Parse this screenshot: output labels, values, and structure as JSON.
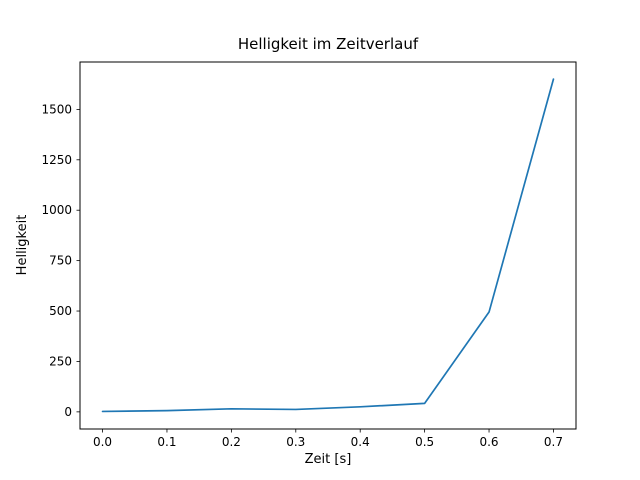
{
  "chart_data": {
    "type": "line",
    "title": "Helligkeit im Zeitverlauf",
    "xlabel": "Zeit [s]",
    "ylabel": "Helligkeit",
    "x": [
      0.0,
      0.1,
      0.2,
      0.3,
      0.4,
      0.5,
      0.6,
      0.7
    ],
    "y": [
      2,
      6,
      15,
      12,
      25,
      42,
      495,
      1650
    ],
    "xticks": [
      0.0,
      0.1,
      0.2,
      0.3,
      0.4,
      0.5,
      0.6,
      0.7
    ],
    "xtick_labels": [
      "0.0",
      "0.1",
      "0.2",
      "0.3",
      "0.4",
      "0.5",
      "0.6",
      "0.7"
    ],
    "yticks": [
      0,
      250,
      500,
      750,
      1000,
      1250,
      1500
    ],
    "ytick_labels": [
      "0",
      "250",
      "500",
      "750",
      "1000",
      "1250",
      "1500"
    ],
    "xlim": [
      -0.035,
      0.735
    ],
    "ylim": [
      -85,
      1735
    ],
    "grid": false,
    "legend": null,
    "line_color": "#1f77b4",
    "axis_color": "#000000",
    "background": "#ffffff"
  }
}
